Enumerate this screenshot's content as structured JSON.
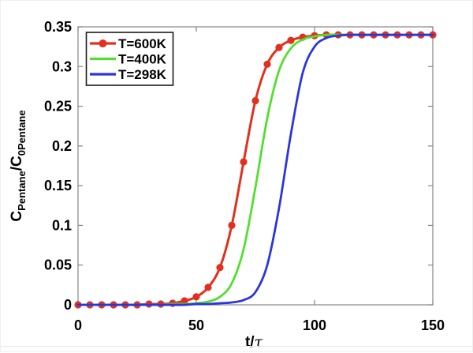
{
  "figure": {
    "background": "#ffffff",
    "axis_color": "#858585",
    "text_color": "#000000",
    "legend_border_color": "#1a1a1a"
  },
  "chart_data": {
    "type": "line",
    "title": "",
    "xlabel": "t/τ",
    "xlabel_parts": {
      "main": "t/",
      "tau": "τ"
    },
    "ylabel": "C_Pentane/C_0Pentane",
    "ylabel_parts": {
      "c1": "C",
      "sub1": "Pentane",
      "c2": "/C",
      "sub2": "0Pentane"
    },
    "xlim": [
      0,
      150
    ],
    "ylim": [
      0,
      0.35
    ],
    "xticks": [
      0,
      50,
      100,
      150
    ],
    "xtick_labels": [
      "0",
      "50",
      "100",
      "150"
    ],
    "yticks": [
      0,
      0.05,
      0.1,
      0.15,
      0.2,
      0.25,
      0.3,
      0.35
    ],
    "ytick_labels": [
      "0",
      "0.05",
      "0.1",
      "0.15",
      "0.2",
      "0.25",
      "0.3",
      "0.35"
    ],
    "grid": false,
    "legend_position": "top-left",
    "plateau_value": 0.34,
    "x": [
      0,
      5,
      10,
      15,
      20,
      25,
      30,
      35,
      40,
      45,
      50,
      55,
      60,
      65,
      70,
      75,
      80,
      85,
      90,
      95,
      100,
      105,
      110,
      115,
      120,
      125,
      130,
      135,
      140,
      145,
      150
    ],
    "series": [
      {
        "name": "T=600K",
        "color": "#e2301f",
        "marker": "circle",
        "line_width": 3,
        "values": [
          0,
          0,
          0,
          0,
          0,
          0,
          0.001,
          0.001,
          0.002,
          0.005,
          0.01,
          0.022,
          0.047,
          0.1,
          0.18,
          0.257,
          0.303,
          0.324,
          0.333,
          0.337,
          0.339,
          0.34,
          0.34,
          0.34,
          0.34,
          0.34,
          0.34,
          0.34,
          0.34,
          0.34,
          0.34
        ]
      },
      {
        "name": "T=400K",
        "color": "#52df2e",
        "marker": "none",
        "line_width": 2.8,
        "values": [
          0,
          0,
          0,
          0,
          0,
          0,
          0,
          0,
          0.001,
          0.001,
          0.002,
          0.004,
          0.01,
          0.027,
          0.07,
          0.148,
          0.235,
          0.295,
          0.323,
          0.334,
          0.338,
          0.34,
          0.34,
          0.34,
          0.34,
          0.34,
          0.34,
          0.34,
          0.34,
          0.34,
          0.34
        ]
      },
      {
        "name": "T=298K",
        "color": "#2b35db",
        "marker": "none",
        "line_width": 2.8,
        "values": [
          0,
          0,
          0,
          0,
          0,
          0,
          0,
          0,
          0,
          0,
          0.001,
          0.001,
          0.002,
          0.003,
          0.006,
          0.016,
          0.05,
          0.122,
          0.215,
          0.292,
          0.325,
          0.336,
          0.339,
          0.34,
          0.34,
          0.34,
          0.34,
          0.34,
          0.34,
          0.34,
          0.34
        ]
      }
    ]
  },
  "legend": {
    "items": [
      "T=600K",
      "T=400K",
      "T=298K"
    ]
  }
}
